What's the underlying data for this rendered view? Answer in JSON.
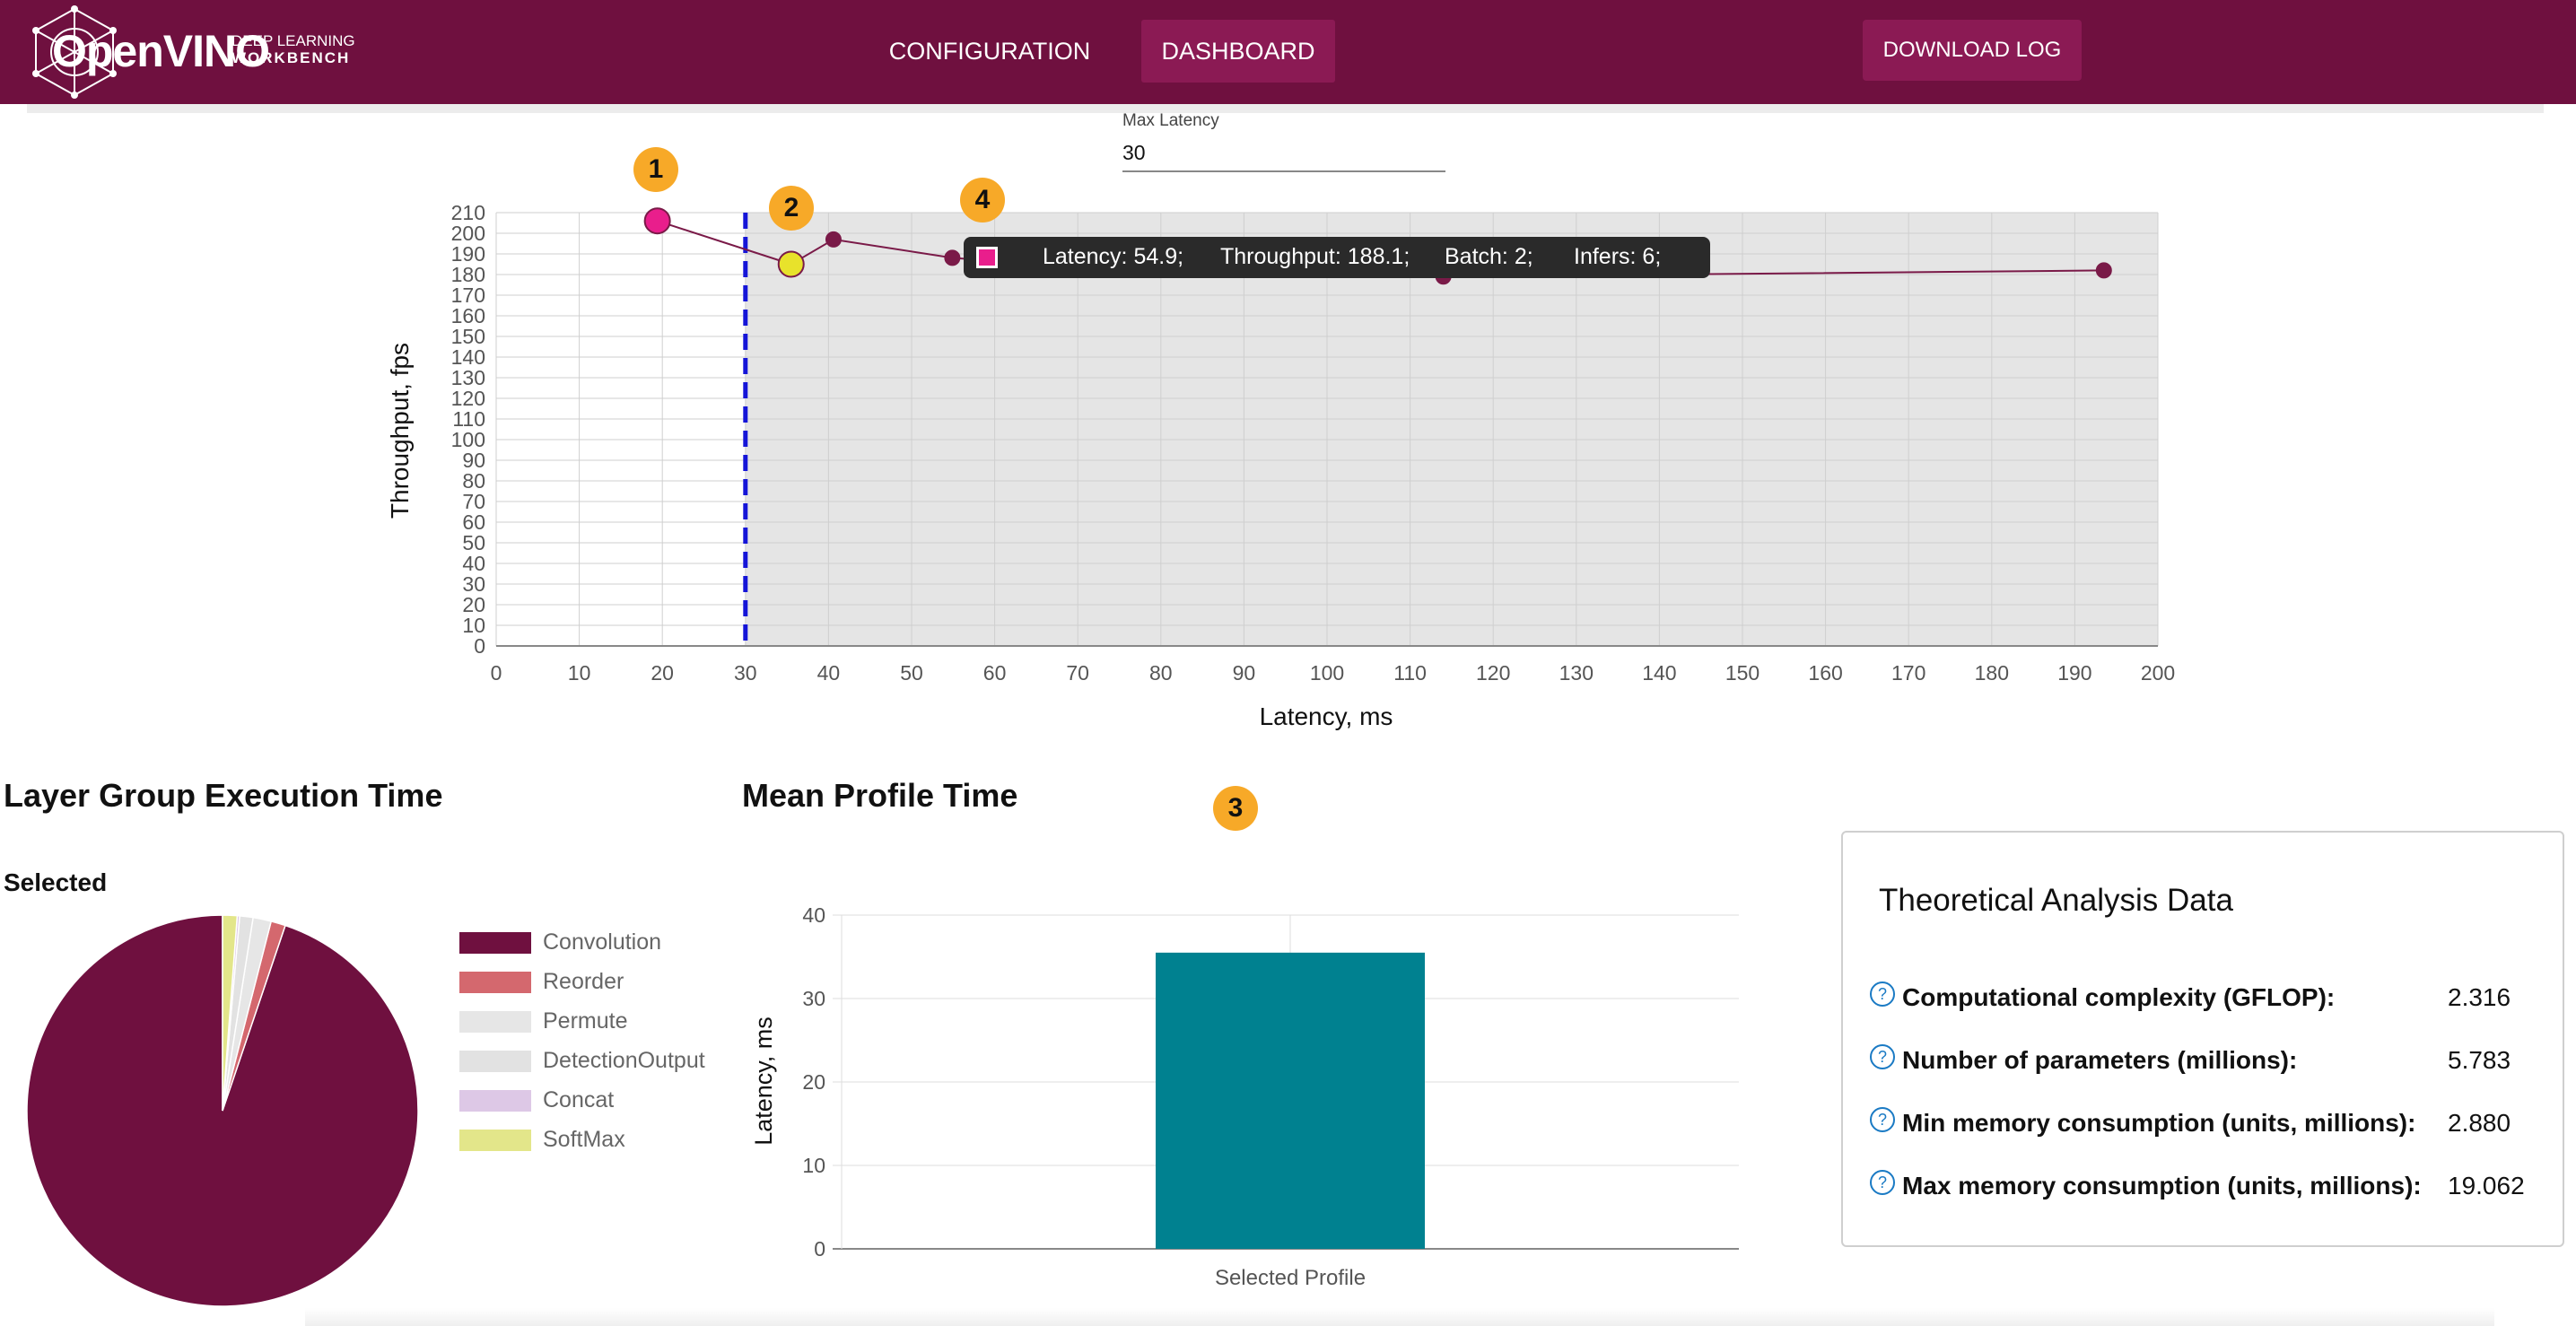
{
  "brand": {
    "name": "OpenVINO",
    "line1": "DEEP LEARNING",
    "line2": "WORKBENCH"
  },
  "nav": {
    "configuration": "CONFIGURATION",
    "dashboard": "DASHBOARD"
  },
  "download_label": "DOWNLOAD LOG",
  "max_latency": {
    "label": "Max Latency",
    "value": "30"
  },
  "markers": [
    "1",
    "2",
    "3",
    "4"
  ],
  "tooltip": {
    "latency": "Latency: 54.9;",
    "throughput": "Throughput: 188.1;",
    "batch": "Batch: 2;",
    "infers": "Infers: 6;"
  },
  "colors": {
    "brand": "#6f103f",
    "accent": "#8b1a54",
    "point": "#7a1a48",
    "best": "#e91e8c",
    "selected": "#e8e22b",
    "limit": "#1515d8",
    "bar": "#008190"
  },
  "sections": {
    "layer_group": "Layer Group Execution Time",
    "layer_group_sub": "Selected",
    "mean_profile": "Mean Profile Time"
  },
  "chart_data": [
    {
      "type": "scatter",
      "xlabel": "Latency, ms",
      "ylabel": "Throughput, fps",
      "xlim": [
        0,
        200
      ],
      "ylim": [
        0,
        210
      ],
      "x_ticks": [
        0,
        10,
        20,
        30,
        40,
        50,
        60,
        70,
        80,
        90,
        100,
        110,
        120,
        130,
        140,
        150,
        160,
        170,
        180,
        190,
        200
      ],
      "y_ticks": [
        0,
        10,
        20,
        30,
        40,
        50,
        60,
        70,
        80,
        90,
        100,
        110,
        120,
        130,
        140,
        150,
        160,
        170,
        180,
        190,
        200,
        210
      ],
      "latency_limit": 30,
      "grid": true,
      "points": [
        {
          "x": 19.4,
          "y": 206,
          "kind": "best"
        },
        {
          "x": 35.5,
          "y": 185,
          "kind": "selected"
        },
        {
          "x": 40.6,
          "y": 197,
          "kind": "normal"
        },
        {
          "x": 54.9,
          "y": 188.1,
          "kind": "normal"
        },
        {
          "x": 65.0,
          "y": 185,
          "kind": "normal"
        },
        {
          "x": 85.5,
          "y": 187,
          "kind": "normal"
        },
        {
          "x": 114.0,
          "y": 179,
          "kind": "normal"
        },
        {
          "x": 193.5,
          "y": 182,
          "kind": "normal"
        }
      ]
    },
    {
      "type": "pie",
      "title": "Layer Group Execution Time",
      "labels": [
        "Convolution",
        "Reorder",
        "Permute",
        "DetectionOutput",
        "Concat",
        "SoftMax"
      ],
      "values": [
        94.8,
        1.2,
        1.5,
        1.1,
        0.2,
        1.2
      ],
      "colors": [
        "#6f103f",
        "#d4686e",
        "#e6e6e6",
        "#e2e2e2",
        "#ddc8e6",
        "#e3e68a"
      ]
    },
    {
      "type": "bar",
      "title": "Mean Profile Time",
      "categories": [
        "Selected Profile"
      ],
      "values": [
        35.5
      ],
      "ylabel": "Latency, ms",
      "ylim": [
        0,
        40
      ],
      "y_ticks": [
        0,
        10,
        20,
        30,
        40
      ]
    }
  ],
  "theory": {
    "title": "Theoretical Analysis Data",
    "rows": [
      {
        "label": "Computational complexity (GFLOP):",
        "value": "2.316"
      },
      {
        "label": "Number of parameters (millions):",
        "value": "5.783"
      },
      {
        "label": "Min memory consumption (units, millions):",
        "value": "2.880"
      },
      {
        "label": "Max memory consumption (units, millions):",
        "value": "19.062"
      }
    ]
  }
}
